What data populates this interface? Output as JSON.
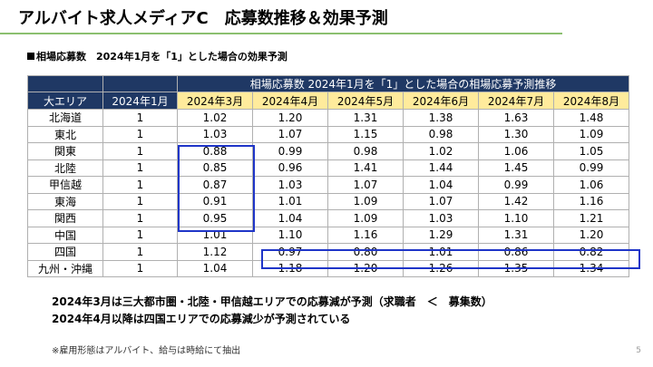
{
  "header": {
    "title": "アルバイト求人メディアC　応募数推移＆効果予測",
    "subtitle": "相場応募数　2024年1月を「1」とした場合の効果予測"
  },
  "table": {
    "banner": "相場応募数  2024年1月を「1」とした場合の相場応募予測推移",
    "region_header": "大エリア",
    "base_header": "2024年1月",
    "month_headers": [
      "2024年3月",
      "2024年4月",
      "2024年5月",
      "2024年6月",
      "2024年7月",
      "2024年8月"
    ],
    "rows": [
      {
        "region": "北海道",
        "base": "1",
        "values": [
          "1.02",
          "1.20",
          "1.31",
          "1.38",
          "1.63",
          "1.48"
        ]
      },
      {
        "region": "東北",
        "base": "1",
        "values": [
          "1.03",
          "1.07",
          "1.15",
          "0.98",
          "1.30",
          "1.09"
        ]
      },
      {
        "region": "関東",
        "base": "1",
        "values": [
          "0.88",
          "0.99",
          "0.98",
          "1.02",
          "1.06",
          "1.05"
        ]
      },
      {
        "region": "北陸",
        "base": "1",
        "values": [
          "0.85",
          "0.96",
          "1.41",
          "1.44",
          "1.45",
          "0.99"
        ]
      },
      {
        "region": "甲信越",
        "base": "1",
        "values": [
          "0.87",
          "1.03",
          "1.07",
          "1.04",
          "0.99",
          "1.06"
        ]
      },
      {
        "region": "東海",
        "base": "1",
        "values": [
          "0.91",
          "1.01",
          "1.09",
          "1.07",
          "1.42",
          "1.16"
        ]
      },
      {
        "region": "関西",
        "base": "1",
        "values": [
          "0.95",
          "1.04",
          "1.09",
          "1.03",
          "1.10",
          "1.21"
        ]
      },
      {
        "region": "中国",
        "base": "1",
        "values": [
          "1.01",
          "1.10",
          "1.16",
          "1.29",
          "1.31",
          "1.20"
        ]
      },
      {
        "region": "四国",
        "base": "1",
        "values": [
          "1.12",
          "0.97",
          "0.80",
          "1.01",
          "0.86",
          "0.82"
        ]
      },
      {
        "region": "九州・沖縄",
        "base": "1",
        "values": [
          "1.04",
          "1.18",
          "1.20",
          "1.26",
          "1.35",
          "1.34"
        ]
      }
    ]
  },
  "notes": {
    "line1": "2024年3月は三大都市圏・北陸・甲信越エリアでの応募減が予測（求職者　＜　募集数）",
    "line2": "2024年4月以降は四国エリアでの応募減少が予測されている"
  },
  "footnote": "※雇用形態はアルバイト、給与は時給にて抽出",
  "page_number": "5",
  "colors": {
    "header_navy": "#1f3864",
    "header_yellow": "#ffeb9c",
    "highlight_blue": "#1f35c8",
    "title_rule_green": "#8bbf6f"
  }
}
